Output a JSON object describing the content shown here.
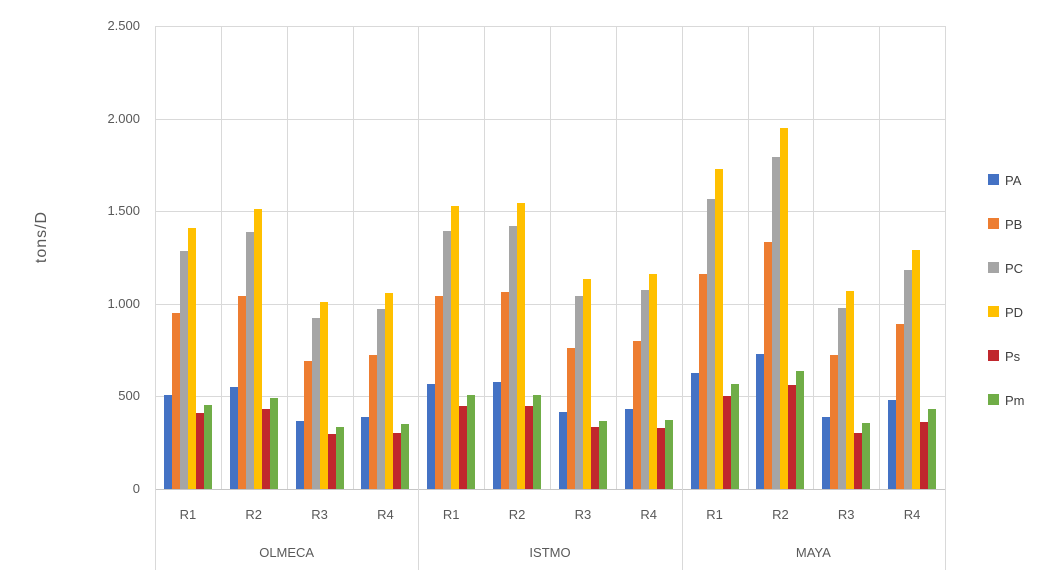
{
  "chart_data": {
    "type": "bar",
    "title": "",
    "ylabel": "tons/D",
    "xlabel": "",
    "ylim": [
      0,
      2500
    ],
    "ytick_interval": 500,
    "ytick_labels": [
      "0",
      "500",
      "1.000",
      "1.500",
      "2.000",
      "2.500"
    ],
    "grid": true,
    "legend_position": "right",
    "group_labels": [
      "OLMECA",
      "ISTMO",
      "MAYA"
    ],
    "categories": [
      "R1",
      "R2",
      "R3",
      "R4",
      "R1",
      "R2",
      "R3",
      "R4",
      "R1",
      "R2",
      "R3",
      "R4"
    ],
    "series": [
      {
        "name": "PA",
        "color": "#4472C4",
        "values": [
          510,
          550,
          365,
          390,
          565,
          580,
          415,
          430,
          625,
          730,
          390,
          480
        ]
      },
      {
        "name": "PB",
        "color": "#ED7D31",
        "values": [
          950,
          1040,
          690,
          725,
          1040,
          1065,
          760,
          800,
          1160,
          1335,
          725,
          890
        ]
      },
      {
        "name": "PC",
        "color": "#A5A5A5",
        "values": [
          1285,
          1385,
          925,
          970,
          1395,
          1420,
          1040,
          1075,
          1565,
          1795,
          980,
          1185
        ]
      },
      {
        "name": "PD",
        "color": "#FFC000",
        "values": [
          1410,
          1510,
          1010,
          1060,
          1530,
          1545,
          1135,
          1160,
          1730,
          1950,
          1070,
          1290
        ]
      },
      {
        "name": "Ps",
        "color": "#C0272D",
        "values": [
          410,
          430,
          295,
          300,
          450,
          450,
          335,
          330,
          500,
          560,
          305,
          360
        ]
      },
      {
        "name": "Pm",
        "color": "#70AD47",
        "values": [
          455,
          490,
          335,
          350,
          505,
          510,
          365,
          375,
          565,
          635,
          355,
          430
        ]
      }
    ]
  }
}
